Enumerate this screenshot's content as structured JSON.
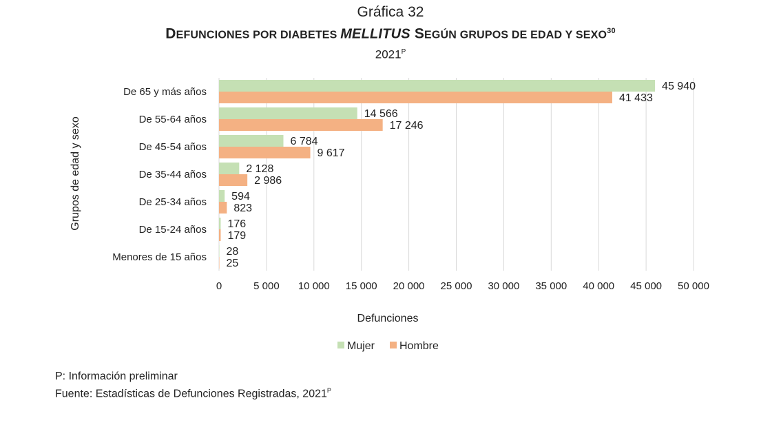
{
  "header": {
    "chart_number": "Gráfica 32",
    "title_part1_big": "D",
    "title_part1_small": "EFUNCIONES POR DIABETES ",
    "title_italic": "MELLITUS",
    "title_part2_big": " S",
    "title_part2_small": "EGÚN GRUPOS DE EDAD Y SEXO",
    "title_sup": "30",
    "year": "2021",
    "year_sup": "P"
  },
  "footnotes": {
    "line1": "P: Información preliminar",
    "line2": "Fuente: Estadísticas de Defunciones Registradas, 2021",
    "line2_sup": "P"
  },
  "chart_data": {
    "type": "bar",
    "orientation": "horizontal",
    "categories": [
      "De 65 y más años",
      "De 55-64 años",
      "De 45-54 años",
      "De 35-44 años",
      "De 25-34 años",
      "De 15-24 años",
      "Menores de 15 años"
    ],
    "series": [
      {
        "name": "Mujer",
        "color": "#c5e0b4",
        "values": [
          45940,
          14566,
          6784,
          2128,
          594,
          176,
          28
        ],
        "labels": [
          "45 940",
          "14 566",
          "6 784",
          "2 128",
          "594",
          "176",
          "28"
        ]
      },
      {
        "name": "Hombre",
        "color": "#f4b183",
        "values": [
          41433,
          17246,
          9617,
          2986,
          823,
          179,
          25
        ],
        "labels": [
          "41 433",
          "17 246",
          "9 617",
          "2 986",
          "823",
          "179",
          "25"
        ]
      }
    ],
    "xlim": [
      0,
      50000
    ],
    "xticks": [
      0,
      5000,
      10000,
      15000,
      20000,
      25000,
      30000,
      35000,
      40000,
      45000,
      50000
    ],
    "xtick_labels": [
      "0",
      "5 000",
      "10 000",
      "15 000",
      "20 000",
      "25 000",
      "30 000",
      "35 000",
      "40 000",
      "45 000",
      "50 000"
    ],
    "xlabel": "Defunciones",
    "ylabel": "Grupos de edad y sexo",
    "grid": "vertical",
    "legend_position": "bottom"
  }
}
